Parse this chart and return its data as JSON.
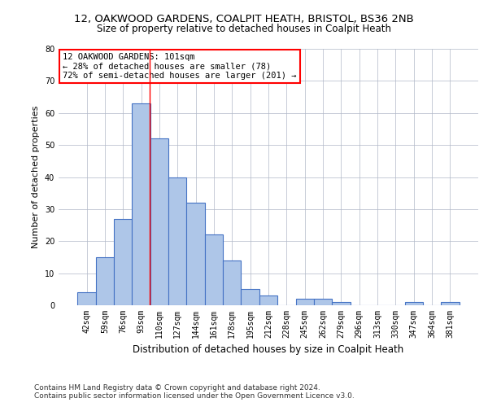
{
  "title": "12, OAKWOOD GARDENS, COALPIT HEATH, BRISTOL, BS36 2NB",
  "subtitle": "Size of property relative to detached houses in Coalpit Heath",
  "xlabel": "Distribution of detached houses by size in Coalpit Heath",
  "ylabel": "Number of detached properties",
  "footnote1": "Contains HM Land Registry data © Crown copyright and database right 2024.",
  "footnote2": "Contains public sector information licensed under the Open Government Licence v3.0.",
  "bin_labels": [
    "42sqm",
    "59sqm",
    "76sqm",
    "93sqm",
    "110sqm",
    "127sqm",
    "144sqm",
    "161sqm",
    "178sqm",
    "195sqm",
    "212sqm",
    "228sqm",
    "245sqm",
    "262sqm",
    "279sqm",
    "296sqm",
    "313sqm",
    "330sqm",
    "347sqm",
    "364sqm",
    "381sqm"
  ],
  "bar_values": [
    4,
    15,
    27,
    63,
    52,
    40,
    32,
    22,
    14,
    5,
    3,
    0,
    2,
    2,
    1,
    0,
    0,
    0,
    1,
    0,
    1
  ],
  "bar_color": "#aec6e8",
  "bar_edgecolor": "#4472c4",
  "bar_linewidth": 0.8,
  "grid_color": "#b0b8c8",
  "ylim": [
    0,
    80
  ],
  "yticks": [
    0,
    10,
    20,
    30,
    40,
    50,
    60,
    70,
    80
  ],
  "annotation_text": "12 OAKWOOD GARDENS: 101sqm\n← 28% of detached houses are smaller (78)\n72% of semi-detached houses are larger (201) →",
  "annotation_box_color": "white",
  "annotation_box_edgecolor": "red",
  "title_fontsize": 9.5,
  "subtitle_fontsize": 8.5,
  "xlabel_fontsize": 8.5,
  "ylabel_fontsize": 8,
  "tick_fontsize": 7,
  "annotation_fontsize": 7.5,
  "footnote_fontsize": 6.5
}
